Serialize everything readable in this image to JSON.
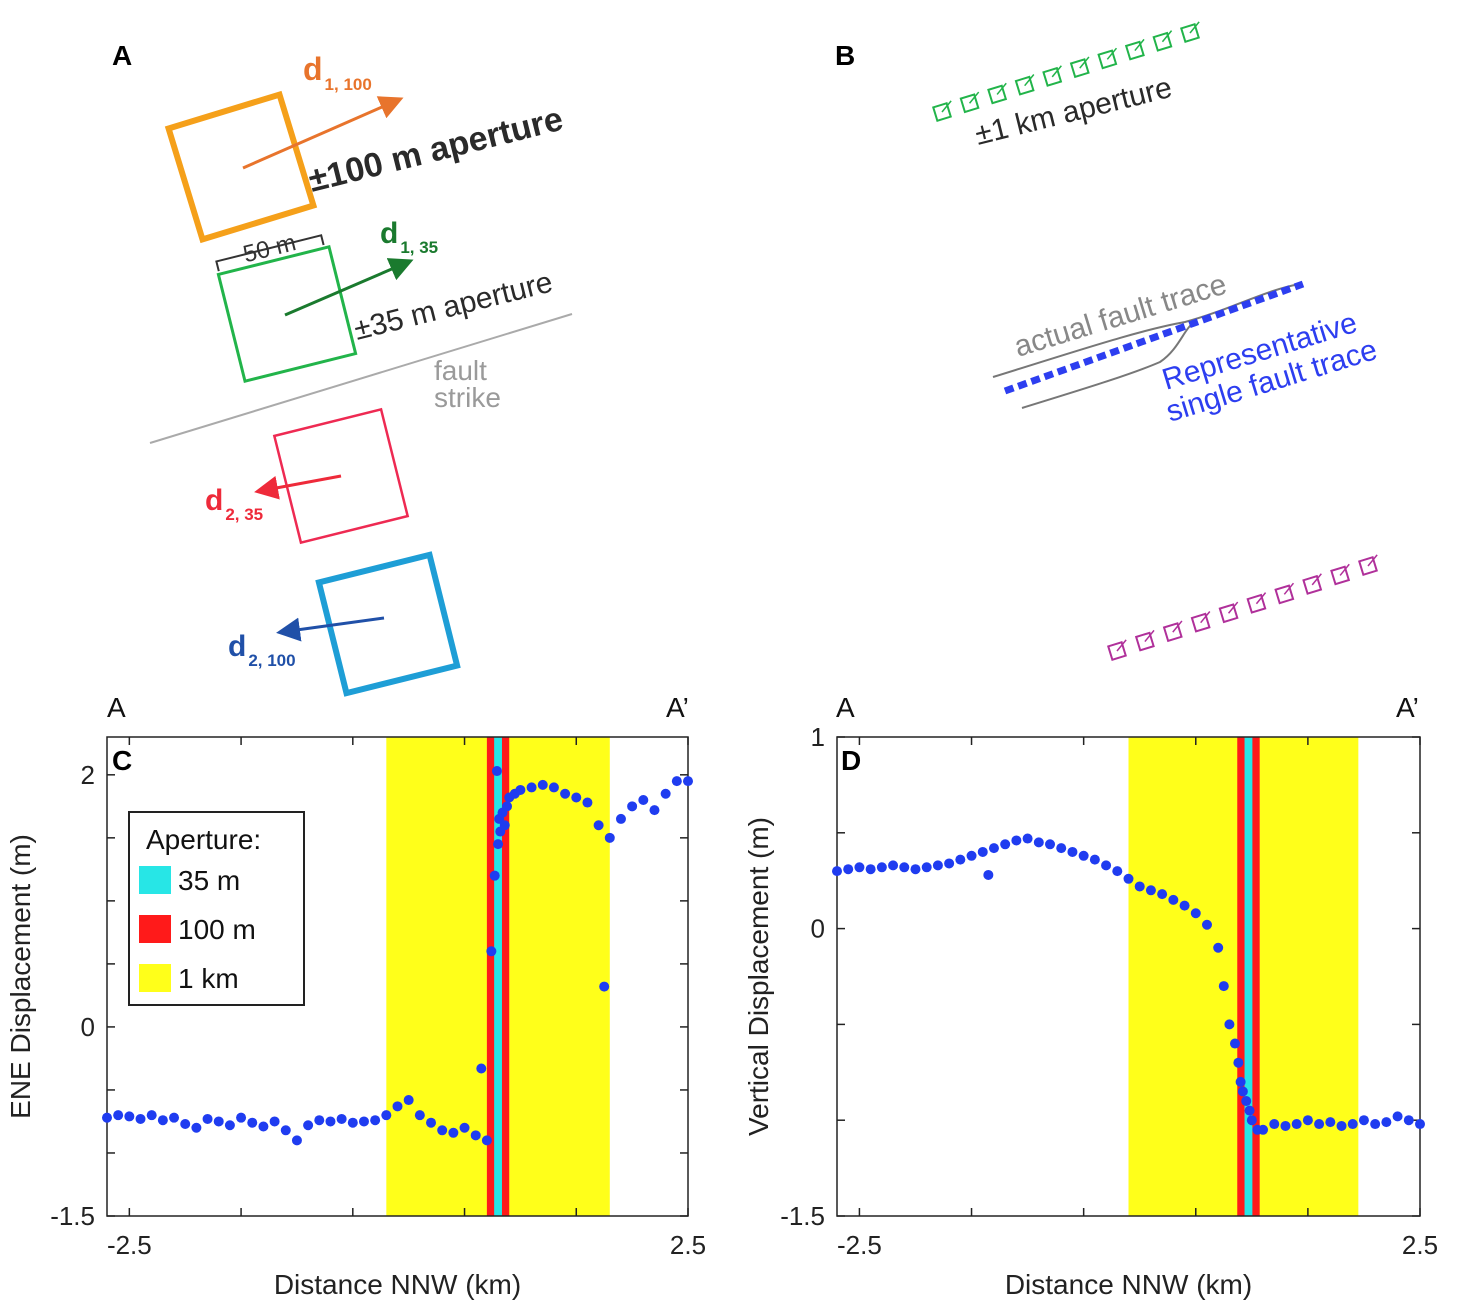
{
  "panels": {
    "a": {
      "letter": "A",
      "d1_100": {
        "main": "d",
        "sub": "1, 100",
        "color": "#e8742c"
      },
      "aperture_100": "±100 m aperture",
      "d1_35": {
        "main": "d",
        "sub": "1, 35",
        "color": "#1a7a2e"
      },
      "scale_50m": "50 m",
      "aperture_35": "±35 m aperture",
      "fault_strike_1": "fault",
      "fault_strike_2": "strike",
      "d2_35": {
        "main": "d",
        "sub": "2, 35",
        "color": "#ee2a3a"
      },
      "d2_100": {
        "main": "d",
        "sub": "2, 100",
        "color": "#2050a8"
      }
    },
    "b": {
      "letter": "B",
      "aperture_1km": "±1 km aperture",
      "actual_trace": "actual fault trace",
      "representative_1": "Representative",
      "representative_2": "single fault trace"
    },
    "c": {
      "letter": "C",
      "left_label": "A",
      "right_label": "A’"
    },
    "d": {
      "letter": "D",
      "left_label": "A",
      "right_label": "A’"
    }
  },
  "legend": {
    "title": "Aperture:",
    "items": [
      {
        "label": "35 m",
        "color": "#27e6e6"
      },
      {
        "label": "100 m",
        "color": "#ff1a1a"
      },
      {
        "label": "1 km",
        "color": "#ffff1a"
      }
    ]
  },
  "chart_data": [
    {
      "type": "scatter",
      "panel": "C",
      "xlabel": "Distance NNW (km)",
      "ylabel": "ENE Displacement (m)",
      "xlim": [
        -2.7,
        2.5
      ],
      "ylim": [
        -1.5,
        2.3
      ],
      "xticklabels": [
        "-2.5",
        "2.5"
      ],
      "yticklabels": [
        "-1.5",
        "0",
        "2"
      ],
      "yticks": [
        -1.5,
        0,
        2
      ],
      "marker_color": "#1f3cf0",
      "bands": [
        {
          "aperture": "1 km",
          "x0": -0.2,
          "x1": 1.8,
          "color": "#ffff1a"
        },
        {
          "aperture": "100 m",
          "x0": 0.7,
          "x1": 0.9,
          "color": "#ff1a1a"
        },
        {
          "aperture": "35 m",
          "x0": 0.765,
          "x1": 0.835,
          "color": "#27e6e6"
        }
      ],
      "series": [
        {
          "x": [
            -2.7,
            -2.6,
            -2.5,
            -2.4,
            -2.3,
            -2.2,
            -2.1,
            -2.0,
            -1.9,
            -1.8,
            -1.7,
            -1.6,
            -1.5,
            -1.4,
            -1.3,
            -1.2,
            -1.1,
            -1.0,
            -0.9,
            -0.8,
            -0.7,
            -0.6,
            -0.5,
            -0.4,
            -0.3,
            -0.2,
            -0.1,
            0.0,
            0.1,
            0.2,
            0.3,
            0.4,
            0.5,
            0.6,
            0.65,
            0.7,
            0.74,
            0.77,
            0.79,
            0.8,
            0.81,
            0.82,
            0.84,
            0.86,
            0.88,
            0.9,
            0.95,
            1.0,
            1.1,
            1.2,
            1.3,
            1.4,
            1.5,
            1.6,
            1.7,
            1.75,
            1.8,
            1.9,
            2.0,
            2.1,
            2.2,
            2.3,
            2.4,
            2.5
          ],
          "y": [
            -0.72,
            -0.7,
            -0.71,
            -0.73,
            -0.7,
            -0.74,
            -0.72,
            -0.77,
            -0.8,
            -0.73,
            -0.75,
            -0.78,
            -0.72,
            -0.76,
            -0.79,
            -0.75,
            -0.82,
            -0.9,
            -0.78,
            -0.74,
            -0.75,
            -0.73,
            -0.76,
            -0.75,
            -0.74,
            -0.7,
            -0.63,
            -0.58,
            -0.7,
            -0.76,
            -0.82,
            -0.84,
            -0.8,
            -0.86,
            -0.33,
            -0.9,
            0.6,
            1.2,
            2.03,
            1.45,
            1.65,
            1.55,
            1.7,
            1.6,
            1.75,
            1.82,
            1.85,
            1.88,
            1.9,
            1.92,
            1.9,
            1.85,
            1.82,
            1.78,
            1.6,
            0.32,
            1.5,
            1.65,
            1.75,
            1.8,
            1.72,
            1.85,
            1.95,
            1.95
          ]
        }
      ]
    },
    {
      "type": "scatter",
      "panel": "D",
      "xlabel": "Distance NNW (km)",
      "ylabel": "Vertical Displacement (m)",
      "xlim": [
        -2.7,
        2.5
      ],
      "ylim": [
        -1.5,
        1
      ],
      "xticklabels": [
        "-2.5",
        "2.5"
      ],
      "yticklabels": [
        "-1.5",
        "0",
        "1"
      ],
      "yticks": [
        -1.5,
        0,
        1
      ],
      "marker_color": "#1f3cf0",
      "bands": [
        {
          "aperture": "1 km",
          "x0": -0.1,
          "x1": 1.95,
          "color": "#ffff1a"
        },
        {
          "aperture": "100 m",
          "x0": 0.87,
          "x1": 1.07,
          "color": "#ff1a1a"
        },
        {
          "aperture": "35 m",
          "x0": 0.935,
          "x1": 1.005,
          "color": "#27e6e6"
        }
      ],
      "series": [
        {
          "x": [
            -2.7,
            -2.6,
            -2.5,
            -2.4,
            -2.3,
            -2.2,
            -2.1,
            -2.0,
            -1.9,
            -1.8,
            -1.7,
            -1.6,
            -1.5,
            -1.4,
            -1.35,
            -1.3,
            -1.2,
            -1.1,
            -1.0,
            -0.9,
            -0.8,
            -0.7,
            -0.6,
            -0.5,
            -0.4,
            -0.3,
            -0.2,
            -0.1,
            0.0,
            0.1,
            0.2,
            0.3,
            0.4,
            0.5,
            0.6,
            0.7,
            0.75,
            0.8,
            0.85,
            0.88,
            0.9,
            0.92,
            0.95,
            0.98,
            1.0,
            1.05,
            1.1,
            1.2,
            1.3,
            1.4,
            1.5,
            1.6,
            1.7,
            1.8,
            1.9,
            2.0,
            2.1,
            2.2,
            2.3,
            2.4,
            2.5
          ],
          "y": [
            0.3,
            0.31,
            0.32,
            0.31,
            0.32,
            0.33,
            0.32,
            0.31,
            0.32,
            0.33,
            0.34,
            0.36,
            0.38,
            0.4,
            0.28,
            0.42,
            0.44,
            0.46,
            0.47,
            0.45,
            0.44,
            0.42,
            0.4,
            0.38,
            0.36,
            0.33,
            0.3,
            0.26,
            0.22,
            0.2,
            0.18,
            0.15,
            0.12,
            0.08,
            0.02,
            -0.1,
            -0.3,
            -0.5,
            -0.6,
            -0.7,
            -0.8,
            -0.85,
            -0.9,
            -0.95,
            -1.0,
            -1.05,
            -1.05,
            -1.02,
            -1.03,
            -1.02,
            -1.0,
            -1.02,
            -1.01,
            -1.03,
            -1.02,
            -1.0,
            -1.02,
            -1.01,
            -0.98,
            -1.0,
            -1.02
          ]
        }
      ]
    }
  ]
}
